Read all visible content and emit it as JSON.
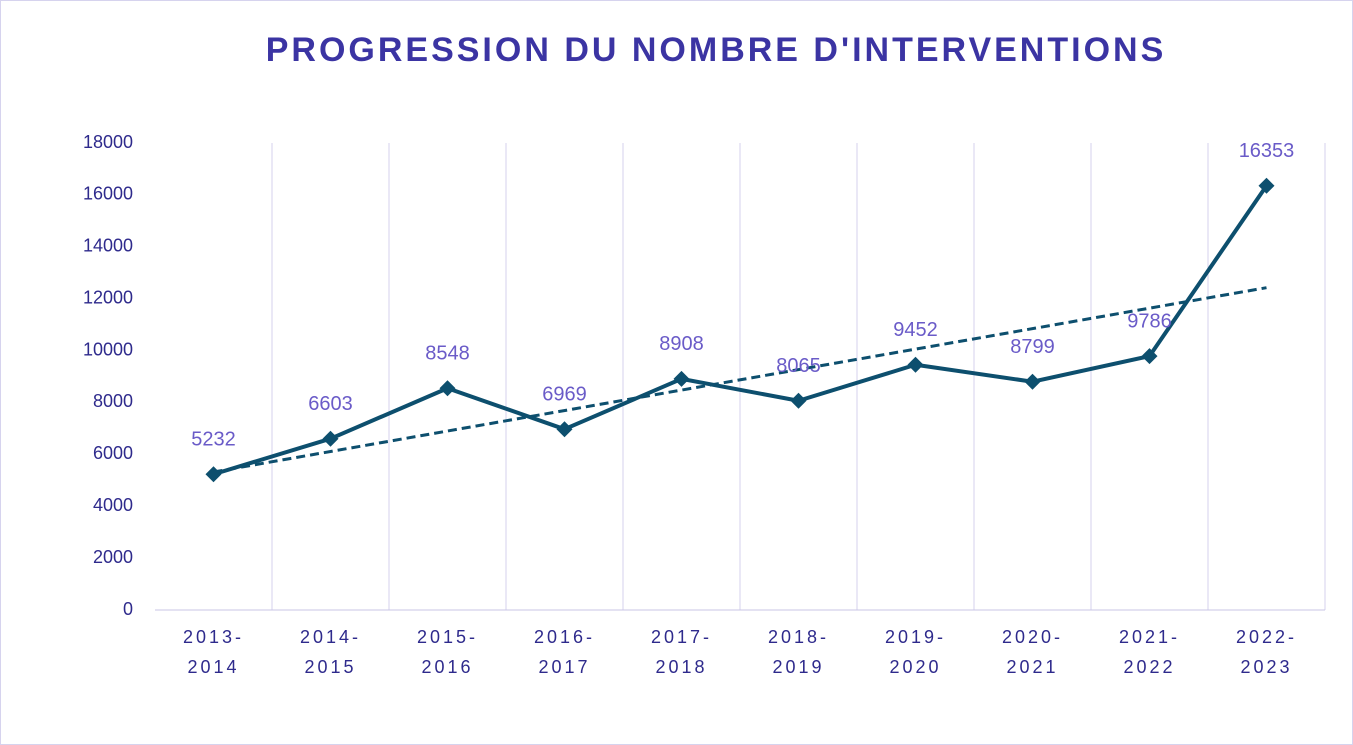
{
  "chart_data": {
    "type": "line",
    "title": "PROGRESSION DU NOMBRE D'INTERVENTIONS",
    "categories": [
      "2013-2014",
      "2014-2015",
      "2015-2016",
      "2016-2017",
      "2017-2018",
      "2018-2019",
      "2019-2020",
      "2020-2021",
      "2021-2022",
      "2022-2023"
    ],
    "series": [
      {
        "color": "#0d4f6e",
        "values": [
          5232,
          6603,
          8548,
          6969,
          8908,
          8065,
          9452,
          8799,
          9786,
          16353
        ]
      }
    ],
    "trendline": "linear",
    "ylim": [
      0,
      18000
    ],
    "yticks": [
      0,
      2000,
      4000,
      6000,
      8000,
      10000,
      12000,
      14000,
      16000,
      18000
    ],
    "grid": "x"
  }
}
